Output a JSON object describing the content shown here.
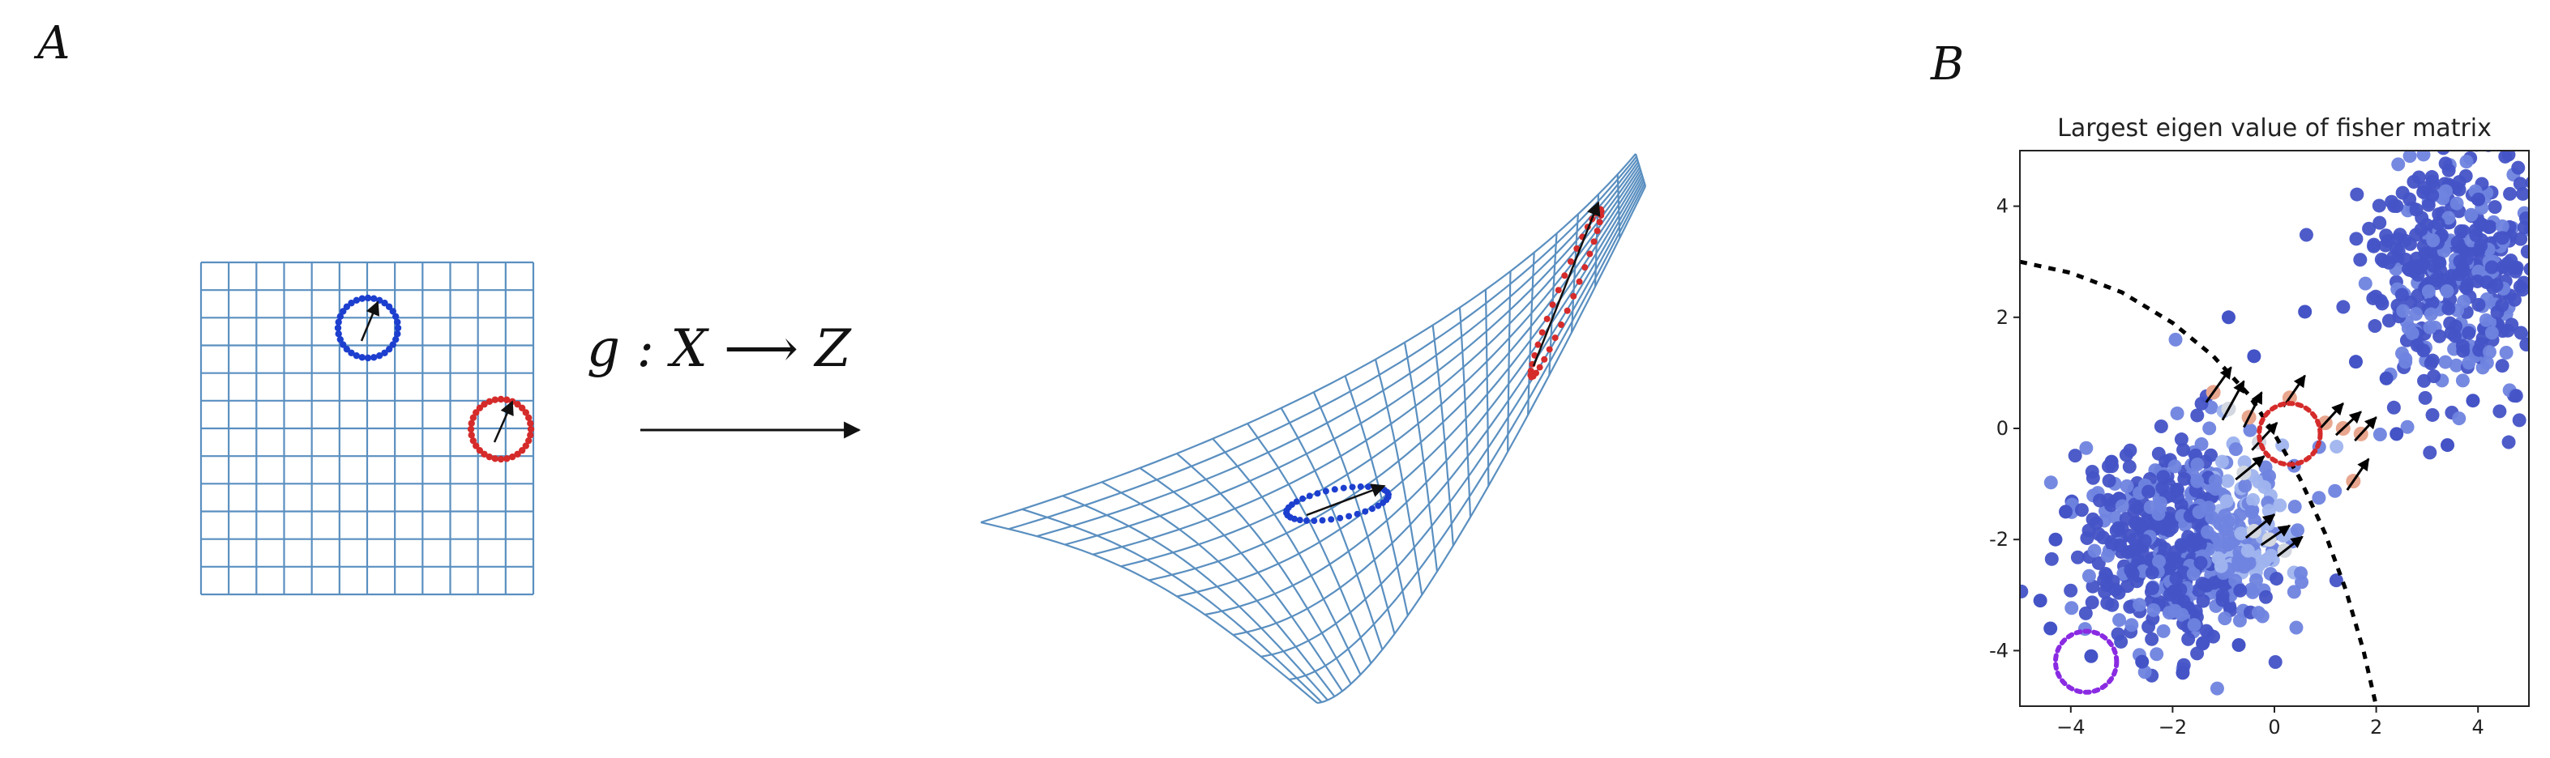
{
  "panel_a": {
    "label": "A",
    "mapping_label": "g : X ⟶ Z"
  },
  "panel_b": {
    "label": "B"
  },
  "chart_data": {
    "type": "scatter",
    "title": "Largest eigen value of fisher matrix",
    "xlabel": "",
    "ylabel": "",
    "xlim": [
      -5,
      5
    ],
    "ylim": [
      -5,
      5
    ],
    "xticks": [
      -4,
      -2,
      0,
      2,
      4
    ],
    "xtick_labels": [
      "−4",
      "−2",
      "0",
      "2",
      "4"
    ],
    "yticks": [
      -4,
      -2,
      0,
      2,
      4
    ],
    "ytick_labels": [
      "-4",
      "-2",
      "0",
      "2",
      "4"
    ],
    "grid": false,
    "colors": {
      "dark": "#4453c6",
      "mid": "#6f83df",
      "light": "#9fb4ee",
      "pale": "#d3d7df",
      "hot": "#e8a68e",
      "boundary": "#000000",
      "red_circle": "#d52b2b",
      "purple_circle": "#8a2be2"
    },
    "clusters": [
      {
        "name": "",
        "cx": 3.6,
        "cy": 3.0,
        "sx": 0.85,
        "sy": 1.15,
        "n": 420,
        "tone": "dark"
      },
      {
        "name": "",
        "cx": -1.7,
        "cy": -2.1,
        "sx": 1.0,
        "sy": 0.95,
        "n": 560,
        "tone": "mixed"
      }
    ],
    "outliers": [
      [
        -4.6,
        -3.1
      ],
      [
        -4.3,
        -2.0
      ],
      [
        -4.1,
        -1.5
      ],
      [
        -3.6,
        -4.1
      ],
      [
        -4.4,
        -3.6
      ],
      [
        -2.6,
        -4.2
      ],
      [
        -1.8,
        -4.4
      ],
      [
        -0.7,
        -3.9
      ],
      [
        -3.2,
        -0.6
      ],
      [
        3.4,
        -0.3
      ],
      [
        3.9,
        0.5
      ],
      [
        2.4,
        -0.1
      ],
      [
        2.2,
        0.9
      ],
      [
        -0.9,
        2.0
      ],
      [
        -0.4,
        1.3
      ],
      [
        0.6,
        2.1
      ],
      [
        1.6,
        1.2
      ]
    ],
    "boundary": {
      "style": "dotted",
      "center": [
        -4.5,
        -8.0
      ],
      "radius": 11.0
    },
    "boundary_points": [
      [
        -5.0,
        3.0
      ],
      [
        -4.0,
        2.8
      ],
      [
        -3.0,
        2.45
      ],
      [
        -2.0,
        1.9
      ],
      [
        -1.2,
        1.3
      ],
      [
        -0.5,
        0.6
      ],
      [
        0.0,
        -0.1
      ],
      [
        0.5,
        -0.9
      ],
      [
        1.0,
        -1.9
      ],
      [
        1.4,
        -2.9
      ],
      [
        1.75,
        -4.0
      ],
      [
        2.0,
        -5.0
      ]
    ],
    "highlight_points": [
      {
        "x": -1.2,
        "y": 0.65,
        "tone": "hot",
        "dx": 0.35,
        "dy": 0.45
      },
      {
        "x": -0.9,
        "y": 0.35,
        "tone": "pale",
        "dx": 0.3,
        "dy": 0.5
      },
      {
        "x": -0.5,
        "y": 0.2,
        "tone": "hot",
        "dx": 0.25,
        "dy": 0.45
      },
      {
        "x": -0.3,
        "y": -0.25,
        "tone": "pale",
        "dx": 0.35,
        "dy": 0.35
      },
      {
        "x": -0.6,
        "y": -0.8,
        "tone": "pale",
        "dx": 0.4,
        "dy": 0.3
      },
      {
        "x": 0.3,
        "y": 0.55,
        "tone": "hot",
        "dx": 0.3,
        "dy": 0.4
      },
      {
        "x": 1.0,
        "y": 0.1,
        "tone": "hot",
        "dx": 0.35,
        "dy": 0.35
      },
      {
        "x": 1.35,
        "y": 0.0,
        "tone": "hot",
        "dx": 0.35,
        "dy": 0.3
      },
      {
        "x": 1.7,
        "y": -0.1,
        "tone": "hot",
        "dx": 0.3,
        "dy": 0.3
      },
      {
        "x": 1.55,
        "y": -0.95,
        "tone": "hot",
        "dx": 0.3,
        "dy": 0.4
      },
      {
        "x": -0.4,
        "y": -1.85,
        "tone": "pale",
        "dx": 0.4,
        "dy": 0.3
      },
      {
        "x": -0.1,
        "y": -2.0,
        "tone": "pale",
        "dx": 0.4,
        "dy": 0.25
      },
      {
        "x": 0.2,
        "y": -2.2,
        "tone": "pale",
        "dx": 0.35,
        "dy": 0.25
      }
    ],
    "circles": [
      {
        "cx": 0.3,
        "cy": -0.1,
        "r": 0.6,
        "color": "red_circle",
        "style": "dotted"
      },
      {
        "cx": -3.7,
        "cy": -4.2,
        "r": 0.6,
        "color": "purple_circle",
        "style": "dotted"
      }
    ]
  }
}
